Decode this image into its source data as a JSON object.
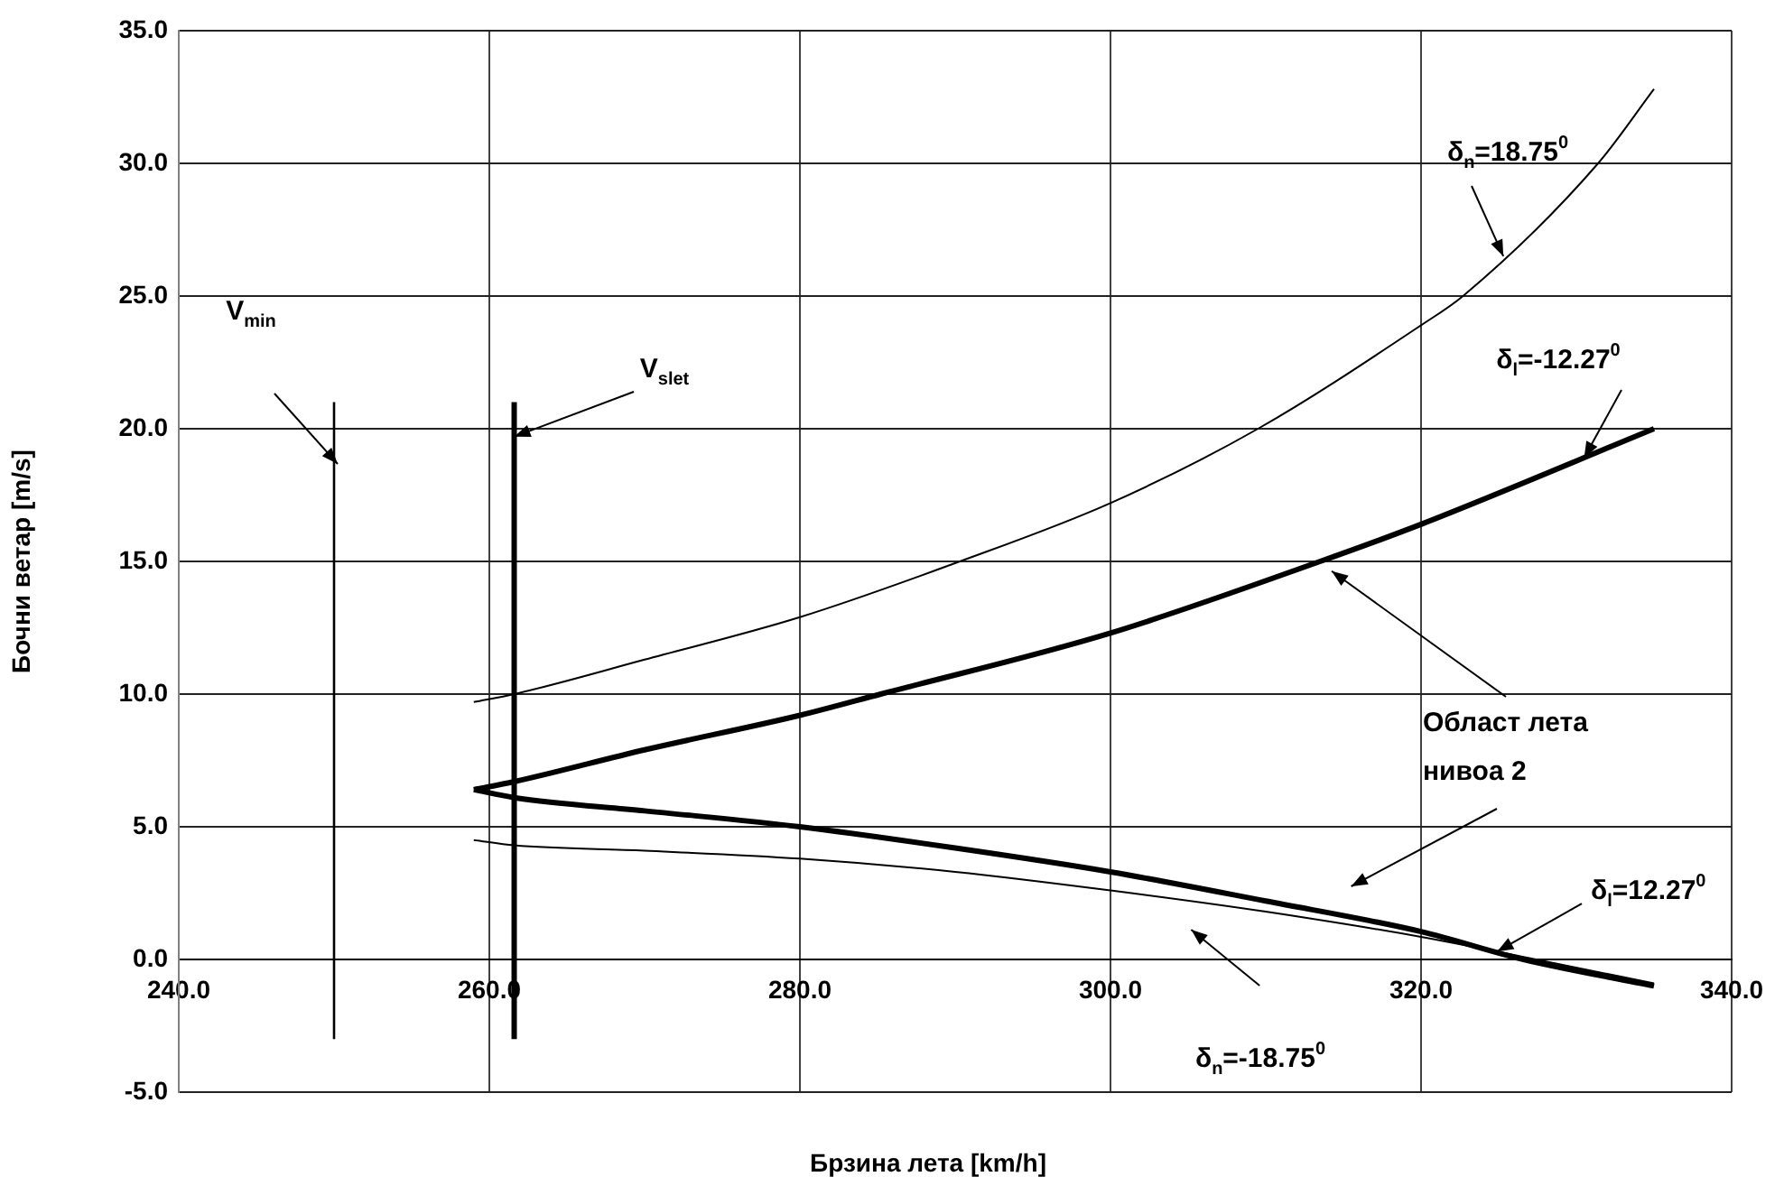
{
  "chart_data": {
    "type": "line",
    "xlabel": "Брзина лета [km/h]",
    "ylabel": "Бочни ветар [m/s]",
    "xlim": [
      240,
      340
    ],
    "ylim": [
      -5,
      35
    ],
    "xticks": [
      {
        "value": 240,
        "label": "240.0"
      },
      {
        "value": 260,
        "label": "260.0"
      },
      {
        "value": 280,
        "label": "280.0"
      },
      {
        "value": 300,
        "label": "300.0"
      },
      {
        "value": 320,
        "label": "320.0"
      },
      {
        "value": 340,
        "label": "340.0"
      }
    ],
    "yticks": [
      {
        "value": -5,
        "label": "-5.0"
      },
      {
        "value": 0,
        "label": "0.0"
      },
      {
        "value": 5,
        "label": "5.0"
      },
      {
        "value": 10,
        "label": "10.0"
      },
      {
        "value": 15,
        "label": "15.0"
      },
      {
        "value": 20,
        "label": "20.0"
      },
      {
        "value": 25,
        "label": "25.0"
      },
      {
        "value": 30,
        "label": "30.0"
      },
      {
        "value": 35,
        "label": "35.0"
      }
    ],
    "grid": true,
    "legend": false,
    "marker": "none",
    "line_style": "solid",
    "series": [
      {
        "color": "#000000",
        "x": [
          250,
          250
        ],
        "values": [
          21,
          -3
        ]
      },
      {
        "color": "#000000",
        "x": [
          261.6,
          261.6
        ],
        "values": [
          21,
          -3
        ]
      },
      {
        "color": "#000000",
        "x": [
          259,
          261.6,
          270,
          280,
          290.3,
          300,
          309.5,
          320,
          322.7,
          331.4,
          335
        ],
        "values": [
          9.7,
          10.0,
          11.3,
          12.9,
          15,
          17.2,
          20,
          23.9,
          25,
          30,
          32.8
        ]
      },
      {
        "color": "#000000",
        "x": [
          259,
          261.6,
          270,
          280,
          285.2,
          300,
          313.5,
          320,
          335
        ],
        "values": [
          6.4,
          6.7,
          7.9,
          9.2,
          10,
          12.3,
          15,
          16.4,
          20
        ]
      },
      {
        "color": "#000000",
        "x": [
          259,
          261.6,
          270,
          280,
          290,
          300,
          310,
          320,
          326.6,
          335
        ],
        "values": [
          6.4,
          6.1,
          5.6,
          5.0,
          4.2,
          3.3,
          2.2,
          1.05,
          0,
          -1.0
        ]
      },
      {
        "color": "#000000",
        "x": [
          259,
          261.6,
          270,
          280,
          290,
          300,
          310,
          320,
          327.4,
          335
        ],
        "values": [
          4.5,
          4.3,
          4.1,
          3.8,
          3.3,
          2.6,
          1.8,
          0.85,
          0,
          -0.9
        ]
      }
    ],
    "annotations": [
      "V$_{min}$",
      {
        "text": "V$_{slet}$",
        "x": 261.6,
        "y": 19.7
      },
      {
        "text": "δ$_{n}$=18.75$^{0}$",
        "x": 325.3,
        "y": 26.5
      },
      {
        "text": "δ$_{l}$=-12.27$^{0}$",
        "x": 330.5,
        "y": 18.9
      },
      "Област лета\nнивоа 2",
      {
        "text": "δ$_{l}$=12.27$^{0}$",
        "x": 324.9,
        "y": 0.3
      },
      "δ$_{n}$=-18.75$^{0}$"
    ]
  }
}
